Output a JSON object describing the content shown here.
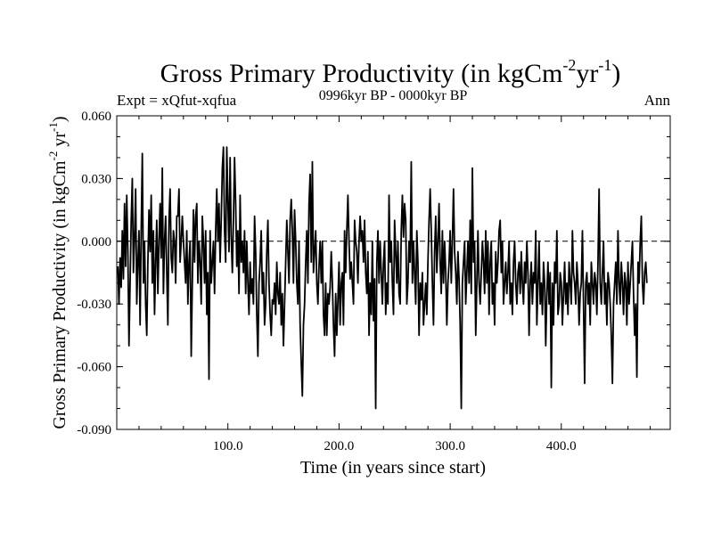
{
  "chart_data": {
    "type": "line",
    "title": "Gross Primary Productivity (in kgCm",
    "title_sup1": "-2",
    "title_mid": "yr",
    "title_sup2": "-1",
    "title_end": ")",
    "subtitle_left": "Expt = xQfut-xqfua",
    "subtitle_center": "0996kyr BP - 0000kyr BP",
    "subtitle_right": "Ann",
    "xlabel": "Time (in years since start)",
    "ylabel": "Gross Primary Productivity (in kgCm",
    "ylabel_sup1": "-2",
    "ylabel_mid": " yr",
    "ylabel_sup2": "-1",
    "ylabel_end": ")",
    "xlim": [
      0,
      498
    ],
    "ylim": [
      -0.09,
      0.06
    ],
    "xticks": [
      100,
      200,
      300,
      400
    ],
    "xtick_labels": [
      "100.0",
      "200.0",
      "300.0",
      "400.0"
    ],
    "yticks": [
      0.06,
      0.03,
      0.0,
      -0.03,
      -0.06,
      -0.09
    ],
    "ytick_labels": [
      "0.060",
      "0.030",
      "0.000",
      "-0.030",
      "-0.060",
      "-0.090"
    ],
    "reference_line": 0.0,
    "series": [
      {
        "name": "xQfut-xqfua",
        "x_start": 1,
        "x_step": 1,
        "values": [
          -0.012,
          -0.03,
          -0.008,
          -0.022,
          0.005,
          -0.018,
          0.018,
          -0.012,
          0.022,
          -0.005,
          -0.05,
          -0.02,
          0.01,
          0.03,
          -0.015,
          0.002,
          0.025,
          -0.03,
          -0.01,
          0.005,
          -0.04,
          0.005,
          0.042,
          -0.02,
          0.0,
          -0.03,
          -0.045,
          -0.01,
          0.015,
          -0.005,
          0.022,
          -0.02,
          0.005,
          -0.035,
          -0.01,
          0.01,
          -0.025,
          0.0,
          0.018,
          -0.008,
          0.035,
          -0.025,
          0.0,
          0.012,
          -0.015,
          -0.04,
          0.01,
          0.025,
          -0.008,
          -0.015,
          0.005,
          0.0,
          -0.02,
          0.012,
          0.012,
          0.025,
          -0.01,
          0.0,
          0.012,
          0.0,
          -0.01,
          -0.02,
          0.005,
          -0.03,
          -0.01,
          0.0,
          -0.055,
          -0.02,
          0.015,
          -0.01,
          0.012,
          0.018,
          -0.02,
          0.0,
          -0.01,
          -0.03,
          0.012,
          0.0,
          -0.02,
          0.005,
          -0.035,
          -0.015,
          -0.066,
          0.005,
          -0.02,
          -0.01,
          0.0,
          -0.025,
          0.005,
          0.025,
          0.0,
          0.018,
          -0.01,
          0.01,
          0.035,
          0.045,
          0.005,
          -0.01,
          0.045,
          0.02,
          -0.005,
          0.04,
          0.002,
          -0.015,
          0.01,
          0.04,
          0.018,
          -0.012,
          0.005,
          -0.025,
          0.022,
          -0.01,
          0.0,
          -0.015,
          0.005,
          -0.025,
          0.0,
          -0.02,
          -0.035,
          -0.01,
          -0.025,
          -0.018,
          -0.03,
          0.012,
          -0.005,
          -0.035,
          -0.055,
          -0.02,
          -0.01,
          0.005,
          -0.025,
          -0.015,
          -0.04,
          -0.03,
          -0.005,
          0.01,
          -0.02,
          -0.035,
          -0.045,
          -0.028,
          -0.03,
          -0.02,
          -0.035,
          -0.01,
          -0.025,
          -0.03,
          -0.015,
          -0.04,
          -0.025,
          -0.05,
          -0.03,
          -0.01,
          0.01,
          -0.005,
          -0.02,
          0.01,
          0.02,
          0.005,
          -0.02,
          0.015,
          0.0,
          -0.02,
          -0.03,
          0.0,
          -0.04,
          -0.058,
          -0.074,
          -0.04,
          -0.03,
          -0.01,
          0.005,
          -0.02,
          0.018,
          0.032,
          -0.01,
          0.038,
          -0.015,
          -0.005,
          0.005,
          -0.02,
          -0.03,
          -0.012,
          0.0,
          -0.02,
          0.0,
          -0.035,
          -0.045,
          -0.02,
          -0.045,
          -0.025,
          -0.03,
          -0.022,
          -0.005,
          -0.02,
          -0.04,
          -0.055,
          -0.025,
          -0.045,
          -0.028,
          -0.01,
          -0.04,
          -0.02,
          -0.015,
          -0.04,
          0.005,
          -0.015,
          0.005,
          0.022,
          0.0,
          -0.018,
          -0.01,
          -0.02,
          -0.03,
          0.01,
          0.0,
          -0.005,
          -0.02,
          0.0,
          0.012,
          0.0,
          0.005,
          -0.01,
          0.01,
          -0.015,
          -0.025,
          -0.005,
          -0.045,
          -0.02,
          -0.035,
          0.0,
          -0.038,
          -0.018,
          -0.08,
          -0.01,
          0.005,
          -0.02,
          0.0,
          -0.015,
          -0.03,
          -0.01,
          0.0,
          -0.035,
          -0.02,
          -0.03,
          0.022,
          -0.01,
          0.0,
          -0.02,
          -0.035,
          0.01,
          -0.005,
          -0.02,
          0.0,
          -0.025,
          -0.03,
          0.005,
          0.022,
          0.002,
          0.018,
          0.01,
          -0.03,
          -0.02,
          0.0,
          -0.01,
          0.038,
          -0.02,
          0.0,
          -0.015,
          -0.03,
          0.005,
          -0.01,
          -0.045,
          -0.02,
          -0.028,
          -0.015,
          -0.04,
          -0.03,
          -0.02,
          -0.035,
          -0.01,
          0.01,
          0.025,
          0.005,
          -0.02,
          -0.04,
          -0.005,
          0.012,
          -0.015,
          0.0,
          0.018,
          -0.01,
          -0.025,
          0.005,
          -0.02,
          0.0,
          -0.015,
          -0.04,
          -0.02,
          -0.01,
          0.005,
          -0.02,
          0.0,
          0.025,
          -0.005,
          -0.015,
          -0.03,
          -0.005,
          -0.018,
          -0.04,
          -0.08,
          -0.02,
          -0.01,
          0.0,
          -0.03,
          -0.015,
          0.0,
          -0.02,
          0.01,
          -0.025,
          0.035,
          -0.01,
          0.0,
          -0.045,
          -0.02,
          0.005,
          -0.02,
          -0.03,
          -0.015,
          0.0,
          -0.01,
          -0.025,
          0.005,
          -0.02,
          0.0,
          -0.035,
          -0.01,
          0.0,
          -0.03,
          -0.02,
          -0.04,
          -0.005,
          -0.02,
          -0.01,
          0.005,
          0.01,
          -0.015,
          0.0,
          -0.03,
          -0.02,
          -0.01,
          -0.025,
          -0.015,
          0.0,
          -0.03,
          -0.02,
          -0.035,
          -0.01,
          0.0,
          -0.02,
          -0.03,
          -0.015,
          -0.01,
          -0.025,
          -0.005,
          -0.02,
          -0.03,
          -0.01,
          -0.02,
          0.0,
          -0.015,
          -0.045,
          -0.02,
          -0.01,
          -0.03,
          -0.015,
          -0.02,
          0.005,
          -0.04,
          -0.02,
          0.0,
          -0.03,
          -0.02,
          -0.035,
          -0.01,
          -0.02,
          -0.05,
          -0.025,
          -0.01,
          -0.03,
          -0.015,
          -0.07,
          -0.02,
          -0.04,
          -0.01,
          -0.02,
          0.005,
          -0.035,
          -0.03,
          -0.015,
          -0.02,
          -0.04,
          -0.025,
          -0.01,
          -0.03,
          -0.02,
          -0.035,
          -0.01,
          -0.02,
          -0.03,
          0.005,
          -0.015,
          -0.02,
          -0.03,
          -0.01,
          -0.02,
          -0.04,
          -0.025,
          -0.02,
          0.005,
          -0.03,
          -0.068,
          -0.02,
          -0.015,
          -0.03,
          -0.02,
          -0.04,
          -0.01,
          -0.02,
          -0.03,
          -0.015,
          -0.02,
          -0.035,
          -0.01,
          0.025,
          -0.02,
          -0.03,
          -0.015,
          0.0,
          -0.03,
          -0.02,
          -0.04,
          -0.015,
          -0.02,
          -0.03,
          -0.045,
          -0.068,
          -0.03,
          -0.02,
          -0.01,
          -0.03,
          0.005,
          -0.02,
          -0.03,
          -0.01,
          -0.02,
          -0.035,
          -0.015,
          -0.02,
          -0.04,
          -0.01,
          -0.03,
          -0.02,
          -0.01,
          0.0,
          -0.025,
          -0.045,
          -0.03,
          -0.065,
          -0.01,
          -0.02,
          0.0,
          0.012,
          -0.02,
          -0.03,
          -0.015,
          -0.01,
          -0.02
        ]
      }
    ]
  }
}
